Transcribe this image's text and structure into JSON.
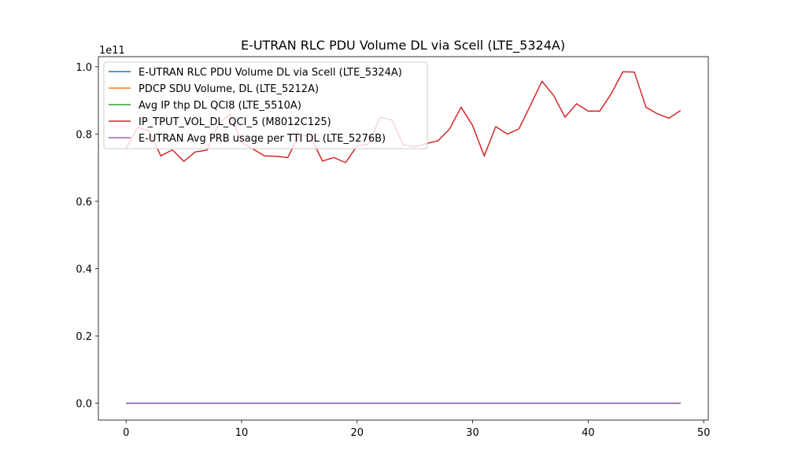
{
  "chart_data": {
    "type": "line",
    "title": "E-UTRAN RLC PDU Volume DL via Scell (LTE_5324A)",
    "xlabel": "",
    "ylabel": "",
    "y_offset_label": "1e11",
    "xlim": [
      -2.4,
      50.4
    ],
    "ylim": [
      -5000000000.0,
      103000000000.0
    ],
    "x_ticks": [
      0,
      10,
      20,
      30,
      40,
      50
    ],
    "x_tick_labels": [
      "0",
      "10",
      "20",
      "30",
      "40",
      "50"
    ],
    "y_ticks": [
      0,
      20000000000.0,
      40000000000.0,
      60000000000.0,
      80000000000.0,
      100000000000.0
    ],
    "y_tick_labels": [
      "0.0",
      "0.2",
      "0.4",
      "0.6",
      "0.8",
      "1.0"
    ],
    "grid": false,
    "legend_position": "upper-left",
    "x": [
      0,
      1,
      2,
      3,
      4,
      5,
      6,
      7,
      8,
      9,
      10,
      11,
      12,
      13,
      14,
      15,
      16,
      17,
      18,
      19,
      20,
      21,
      22,
      23,
      24,
      25,
      26,
      27,
      28,
      29,
      30,
      31,
      32,
      33,
      34,
      35,
      36,
      37,
      38,
      39,
      40,
      41,
      42,
      43,
      44,
      45,
      46,
      47,
      48
    ],
    "series": [
      {
        "name": "E-UTRAN RLC PDU Volume DL via Scell (LTE_5324A)",
        "color": "#1f77b4",
        "values": [
          0,
          0,
          0,
          0,
          0,
          0,
          0,
          0,
          0,
          0,
          0,
          0,
          0,
          0,
          0,
          0,
          0,
          0,
          0,
          0,
          0,
          0,
          0,
          0,
          0,
          0,
          0,
          0,
          0,
          0,
          0,
          0,
          0,
          0,
          0,
          0,
          0,
          0,
          0,
          0,
          0,
          0,
          0,
          0,
          0,
          0,
          0,
          0,
          0
        ]
      },
      {
        "name": "PDCP SDU Volume, DL (LTE_5212A)",
        "color": "#ff7f0e",
        "values": [
          0,
          0,
          0,
          0,
          0,
          0,
          0,
          0,
          0,
          0,
          0,
          0,
          0,
          0,
          0,
          0,
          0,
          0,
          0,
          0,
          0,
          0,
          0,
          0,
          0,
          0,
          0,
          0,
          0,
          0,
          0,
          0,
          0,
          0,
          0,
          0,
          0,
          0,
          0,
          0,
          0,
          0,
          0,
          0,
          0,
          0,
          0,
          0,
          0
        ]
      },
      {
        "name": "Avg IP thp DL QCI8 (LTE_5510A)",
        "color": "#2ca02c",
        "values": [
          0,
          0,
          0,
          0,
          0,
          0,
          0,
          0,
          0,
          0,
          0,
          0,
          0,
          0,
          0,
          0,
          0,
          0,
          0,
          0,
          0,
          0,
          0,
          0,
          0,
          0,
          0,
          0,
          0,
          0,
          0,
          0,
          0,
          0,
          0,
          0,
          0,
          0,
          0,
          0,
          0,
          0,
          0,
          0,
          0,
          0,
          0,
          0,
          0
        ]
      },
      {
        "name": "IP_TPUT_VOL_DL_QCI_5 (M8012C125)",
        "color": "#d62728",
        "values": [
          75700000000.0,
          82000000000.0,
          81000000000.0,
          73500000000.0,
          75300000000.0,
          71900000000.0,
          74700000000.0,
          75200000000.0,
          83000000000.0,
          86000000000.0,
          77500000000.0,
          75500000000.0,
          73500000000.0,
          73400000000.0,
          73000000000.0,
          80000000000.0,
          79000000000.0,
          72000000000.0,
          73000000000.0,
          71500000000.0,
          76500000000.0,
          77000000000.0,
          85000000000.0,
          84200000000.0,
          76800000000.0,
          76200000000.0,
          77200000000.0,
          78000000000.0,
          81500000000.0,
          88000000000.0,
          82500000000.0,
          73500000000.0,
          82200000000.0,
          80000000000.0,
          81500000000.0,
          88500000000.0,
          95700000000.0,
          91500000000.0,
          85000000000.0,
          89000000000.0,
          86800000000.0,
          86800000000.0,
          92000000000.0,
          98500000000.0,
          98400000000.0,
          88000000000.0,
          86000000000.0,
          84700000000.0,
          87000000000.0
        ]
      },
      {
        "name": "E-UTRAN Avg PRB usage per TTI DL (LTE_5276B)",
        "color": "#9467bd",
        "values": [
          0,
          0,
          0,
          0,
          0,
          0,
          0,
          0,
          0,
          0,
          0,
          0,
          0,
          0,
          0,
          0,
          0,
          0,
          0,
          0,
          0,
          0,
          0,
          0,
          0,
          0,
          0,
          0,
          0,
          0,
          0,
          0,
          0,
          0,
          0,
          0,
          0,
          0,
          0,
          0,
          0,
          0,
          0,
          0,
          0,
          0,
          0,
          0,
          0
        ]
      }
    ]
  }
}
